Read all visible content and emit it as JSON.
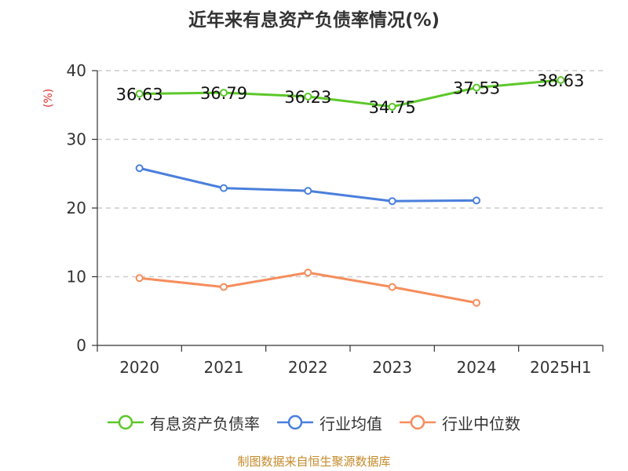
{
  "chart_data": {
    "type": "line",
    "title": "近年来有息资产负债率情况(%)",
    "ylabel": "(%)",
    "xlabel": "",
    "categories": [
      "2020",
      "2021",
      "2022",
      "2023",
      "2024",
      "2025H1"
    ],
    "ylim": [
      0,
      40
    ],
    "yticks": [
      "0",
      "10",
      "20",
      "30",
      "40"
    ],
    "grid": true,
    "legend_position": "bottom",
    "series": [
      {
        "name": "有息资产负债率",
        "color": "#5cc82a",
        "values": [
          36.63,
          36.79,
          36.23,
          34.75,
          37.53,
          38.63
        ],
        "labels": [
          "36.63",
          "36.79",
          "36.23",
          "34.75",
          "37.53",
          "38.63"
        ]
      },
      {
        "name": "行业均值",
        "color": "#4a7fdc",
        "values": [
          25.8,
          22.9,
          22.5,
          21.0,
          21.1,
          null
        ]
      },
      {
        "name": "行业中位数",
        "color": "#f58d5c",
        "values": [
          9.8,
          8.5,
          10.6,
          8.5,
          6.2,
          null
        ]
      }
    ]
  },
  "source_note": "制图数据来自恒生聚源数据库",
  "colors": {
    "ylabel": "#e0322f",
    "source_note": "#c58a2a",
    "axis": "#333333",
    "grid": "#cccccc"
  }
}
